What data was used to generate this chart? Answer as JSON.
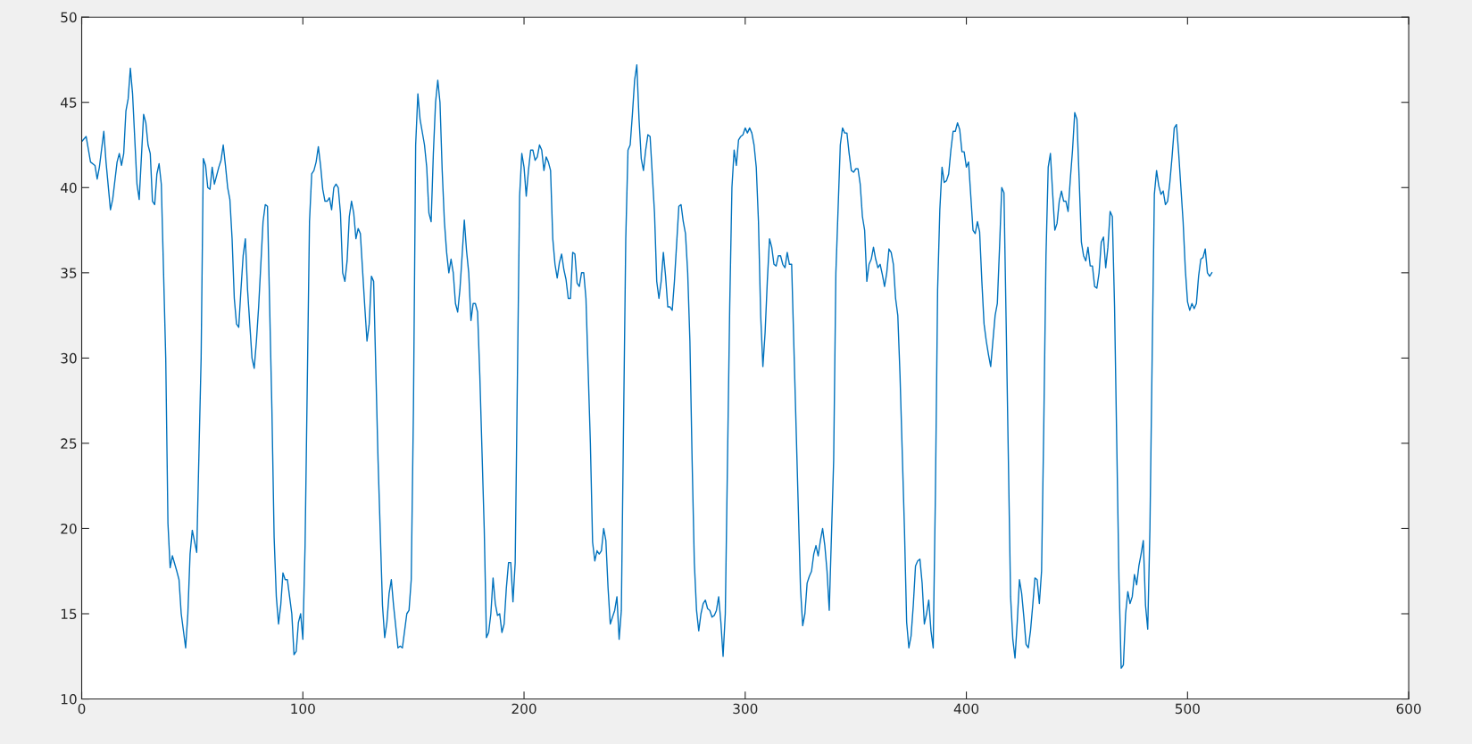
{
  "chart_data": {
    "type": "line",
    "xlim": [
      0,
      600
    ],
    "ylim": [
      10,
      50
    ],
    "xticks": [
      0,
      100,
      200,
      300,
      400,
      500,
      600
    ],
    "yticks": [
      10,
      15,
      20,
      25,
      30,
      35,
      40,
      45,
      50
    ],
    "grid": false,
    "marker": "none",
    "line_style": "solid",
    "series": [
      {
        "color": "#0072bd",
        "x": [
          0,
          2,
          4,
          6,
          7,
          8,
          10,
          11,
          13,
          14,
          16,
          17,
          18,
          19,
          20,
          21,
          22,
          23,
          25,
          26,
          28,
          29,
          30,
          31,
          32,
          33,
          34,
          35,
          36,
          38,
          39,
          40,
          41,
          43,
          44,
          45,
          47,
          48,
          49,
          50,
          52,
          54,
          55,
          56,
          57,
          58,
          59,
          60,
          62,
          63,
          64,
          65,
          66,
          67,
          68,
          69,
          70,
          71,
          72,
          73,
          74,
          75,
          77,
          78,
          79,
          80,
          82,
          83,
          84,
          86,
          87,
          88,
          89,
          90,
          91,
          92,
          93,
          94,
          95,
          96,
          97,
          98,
          99,
          100,
          101,
          103,
          104,
          105,
          106,
          107,
          108,
          109,
          110,
          111,
          112,
          113,
          114,
          115,
          116,
          117,
          118,
          119,
          120,
          121,
          122,
          123,
          124,
          125,
          126,
          128,
          129,
          130,
          131,
          132,
          134,
          136,
          137,
          138,
          139,
          140,
          141,
          143,
          144,
          145,
          146,
          147,
          148,
          149,
          150,
          151,
          152,
          153,
          155,
          156,
          157,
          158,
          159,
          160,
          161,
          162,
          163,
          164,
          165,
          166,
          167,
          168,
          169,
          170,
          171,
          172,
          173,
          174,
          175,
          176,
          177,
          178,
          179,
          180,
          182,
          183,
          184,
          185,
          186,
          187,
          188,
          189,
          190,
          191,
          192,
          193,
          194,
          195,
          196,
          198,
          199,
          200,
          201,
          202,
          203,
          204,
          205,
          206,
          207,
          208,
          209,
          210,
          211,
          212,
          213,
          214,
          215,
          216,
          217,
          218,
          219,
          220,
          221,
          222,
          223,
          224,
          225,
          226,
          227,
          228,
          230,
          231,
          232,
          233,
          234,
          235,
          236,
          237,
          238,
          239,
          240,
          241,
          242,
          243,
          244,
          246,
          247,
          248,
          249,
          250,
          251,
          252,
          253,
          254,
          255,
          256,
          257,
          259,
          260,
          261,
          262,
          263,
          264,
          265,
          266,
          267,
          268,
          270,
          271,
          272,
          273,
          274,
          275,
          276,
          277,
          278,
          279,
          280,
          281,
          282,
          283,
          284,
          285,
          286,
          287,
          288,
          289,
          290,
          291,
          293,
          294,
          295,
          296,
          297,
          298,
          299,
          300,
          301,
          302,
          303,
          304,
          305,
          306,
          307,
          308,
          309,
          310,
          311,
          312,
          313,
          314,
          315,
          316,
          317,
          318,
          319,
          320,
          321,
          323,
          325,
          326,
          327,
          328,
          329,
          330,
          331,
          332,
          333,
          334,
          335,
          336,
          337,
          338,
          340,
          341,
          343,
          344,
          345,
          346,
          347,
          348,
          349,
          350,
          351,
          352,
          353,
          354,
          355,
          356,
          357,
          358,
          359,
          360,
          361,
          362,
          363,
          364,
          365,
          366,
          367,
          368,
          369,
          370,
          372,
          373,
          374,
          375,
          376,
          377,
          378,
          379,
          380,
          381,
          382,
          383,
          384,
          385,
          386,
          387,
          388,
          389,
          390,
          391,
          392,
          393,
          394,
          395,
          396,
          397,
          398,
          399,
          400,
          401,
          402,
          403,
          404,
          405,
          406,
          407,
          408,
          409,
          410,
          411,
          412,
          413,
          414,
          415,
          416,
          417,
          418,
          419,
          420,
          421,
          422,
          423,
          424,
          425,
          426,
          427,
          428,
          429,
          430,
          431,
          432,
          433,
          434,
          435,
          436,
          437,
          438,
          439,
          440,
          441,
          442,
          443,
          444,
          445,
          446,
          447,
          448,
          449,
          450,
          451,
          452,
          453,
          454,
          455,
          456,
          457,
          458,
          459,
          460,
          461,
          462,
          463,
          464,
          465,
          466,
          467,
          468,
          469,
          470,
          471,
          472,
          473,
          474,
          475,
          476,
          477,
          478,
          479,
          480,
          481,
          482,
          483,
          484,
          485,
          486,
          487,
          488,
          489,
          490,
          491,
          492,
          493,
          494,
          495,
          496,
          497,
          498,
          499,
          500,
          501,
          502,
          503,
          504,
          505,
          506,
          507,
          508,
          509,
          510,
          511
        ],
        "values": [
          42.7,
          43,
          41.5,
          41.3,
          40.5,
          41.2,
          43.3,
          41.5,
          38.7,
          39.3,
          41.5,
          42,
          41.3,
          42,
          44.5,
          45.2,
          47,
          45.5,
          40.2,
          39.3,
          44.3,
          43.8,
          42.5,
          42,
          39.2,
          39,
          40.8,
          41.4,
          40.2,
          30,
          20.3,
          17.7,
          18.4,
          17.5,
          17,
          15,
          13,
          15,
          18.5,
          19.9,
          18.6,
          30,
          41.7,
          41.3,
          40,
          39.9,
          41.2,
          40.2,
          41.2,
          41.6,
          42.5,
          41.3,
          40,
          39.3,
          37,
          33.5,
          32,
          31.8,
          34,
          36,
          37,
          34,
          30,
          29.4,
          31,
          33,
          38,
          39,
          38.9,
          27,
          19.5,
          16,
          14.4,
          15.5,
          17.4,
          17,
          17,
          16,
          15,
          12.6,
          12.8,
          14.5,
          15,
          13.5,
          19,
          38,
          40.8,
          41,
          41.5,
          42.4,
          41.3,
          39.9,
          39.2,
          39.2,
          39.4,
          38.7,
          40,
          40.2,
          40,
          38.5,
          35,
          34.5,
          35.7,
          38.3,
          39.2,
          38.5,
          37,
          37.6,
          37.3,
          33,
          31,
          32,
          34.8,
          34.5,
          24,
          15.5,
          13.6,
          14.5,
          16.2,
          17,
          15.5,
          13,
          13.1,
          13,
          14,
          15,
          15.2,
          17,
          27,
          42.5,
          45.5,
          44,
          42.5,
          41.2,
          38.5,
          38,
          42,
          45,
          46.3,
          45,
          41,
          38,
          36.2,
          35,
          35.8,
          35,
          33.2,
          32.7,
          34,
          36,
          38.1,
          36.3,
          35,
          32.2,
          33.2,
          33.2,
          32.7,
          29,
          20,
          13.6,
          13.9,
          15,
          17.1,
          15.6,
          14.9,
          15,
          13.9,
          14.4,
          16.5,
          18,
          18,
          15.7,
          18,
          39.5,
          42,
          41.2,
          39.5,
          41,
          42.2,
          42.2,
          41.6,
          41.8,
          42.5,
          42.2,
          41,
          41.8,
          41.5,
          41,
          37,
          35.5,
          34.7,
          35.6,
          36.1,
          35.2,
          34.6,
          33.5,
          33.5,
          36.2,
          36.1,
          34.4,
          34.2,
          35,
          35,
          33.5,
          25,
          19.2,
          18.1,
          18.7,
          18.5,
          18.7,
          20,
          19.3,
          16.5,
          14.4,
          14.8,
          15.2,
          16,
          13.5,
          15.2,
          37,
          42.2,
          42.5,
          44.3,
          46.3,
          47.2,
          44,
          41.7,
          41,
          42.2,
          43.1,
          43,
          38.5,
          34.5,
          33.5,
          34.5,
          36.2,
          34.8,
          33,
          33,
          32.8,
          34.5,
          38.9,
          39,
          38,
          37.3,
          35,
          31,
          24,
          18,
          15.2,
          14,
          15,
          15.6,
          15.8,
          15.3,
          15.2,
          14.8,
          14.9,
          15.2,
          16,
          14.5,
          12.5,
          15,
          33,
          40,
          42.2,
          41.3,
          42.8,
          43,
          43.1,
          43.5,
          43.2,
          43.5,
          43.2,
          42.5,
          41.2,
          38,
          32.5,
          29.5,
          31.5,
          34.5,
          37,
          36.5,
          35.5,
          35.4,
          36,
          36,
          35.5,
          35.3,
          36.2,
          35.5,
          35.5,
          26,
          16.5,
          14.3,
          15,
          16.8,
          17.2,
          17.5,
          18.5,
          19,
          18.4,
          19.3,
          20,
          19,
          17.5,
          15.2,
          24,
          35,
          42.5,
          43.5,
          43.2,
          43.2,
          42,
          41,
          40.9,
          41.1,
          41.1,
          40.2,
          38.3,
          37.5,
          34.5,
          35.5,
          35.8,
          36.5,
          35.8,
          35.3,
          35.5,
          34.9,
          34.2,
          35,
          36.4,
          36.2,
          35.5,
          33.5,
          32.5,
          29,
          20,
          14.5,
          13,
          13.7,
          15.5,
          17.8,
          18.1,
          18.2,
          16.8,
          14.4,
          15,
          15.8,
          14,
          13,
          22,
          34,
          38.7,
          41.2,
          40.3,
          40.4,
          40.8,
          42.2,
          43.3,
          43.3,
          43.8,
          43.4,
          42.1,
          42.1,
          41.2,
          41.5,
          39.5,
          37.5,
          37.3,
          38,
          37.4,
          34.5,
          32,
          31,
          30.2,
          29.5,
          31,
          32.5,
          33.2,
          36.5,
          40,
          39.7,
          32,
          24,
          16,
          13.5,
          12.4,
          14.5,
          17,
          16.2,
          14.8,
          13.2,
          13,
          14,
          15.5,
          17.1,
          17,
          15.6,
          17.5,
          26,
          36,
          41.2,
          42,
          39.7,
          37.5,
          37.9,
          39.2,
          39.8,
          39.2,
          39.2,
          38.6,
          40.5,
          42.2,
          44.4,
          44,
          40.5,
          36.8,
          36,
          35.7,
          36.5,
          35.4,
          35.4,
          34.2,
          34.1,
          35,
          36.8,
          37.1,
          35.3,
          36.5,
          38.6,
          38.3,
          33,
          25,
          17,
          11.8,
          12,
          15,
          16.3,
          15.6,
          16,
          17.3,
          16.7,
          17.8,
          18.5,
          19.3,
          15.5,
          14.1,
          20,
          30,
          39.6,
          41,
          40.1,
          39.6,
          39.8,
          39,
          39.2,
          40.3,
          41.8,
          43.5,
          43.7,
          42,
          40,
          38,
          35.2,
          33.3,
          32.8,
          33.2,
          32.9,
          33.2,
          34.8,
          35.8,
          35.9,
          36.4,
          35,
          34.8,
          35
        ]
      }
    ]
  }
}
